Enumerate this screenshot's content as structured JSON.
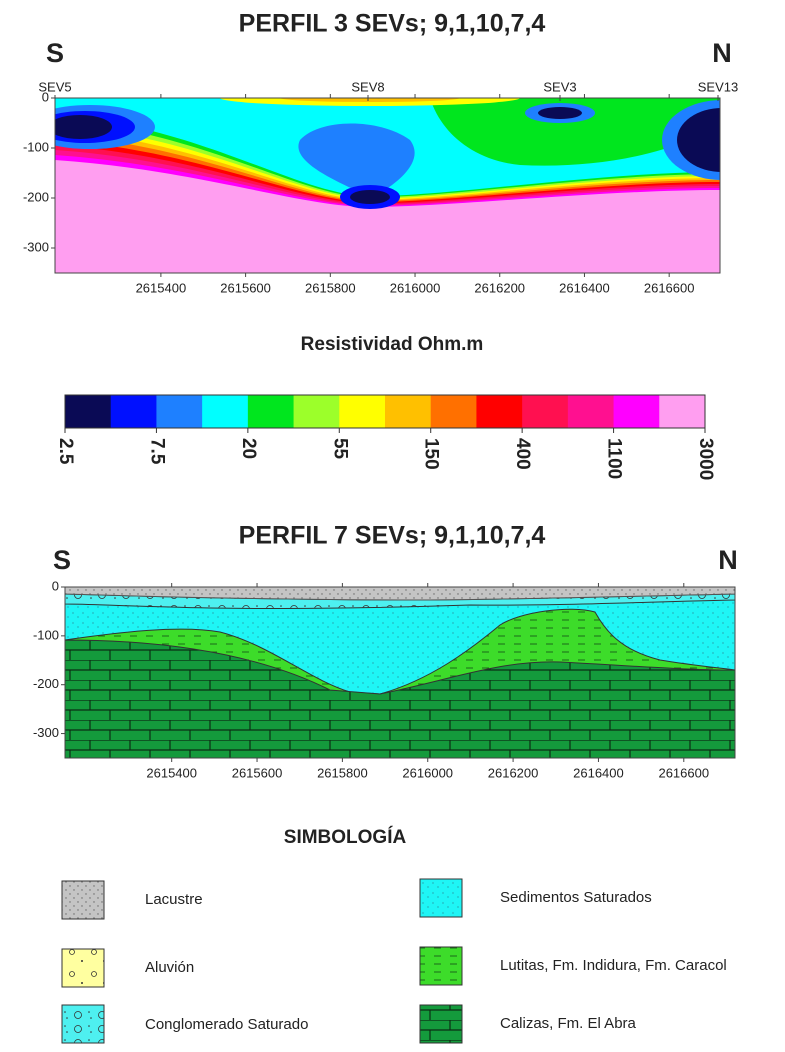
{
  "profile3": {
    "title": "PERFIL 3 SEVs; 9,1,10,7,4",
    "left": "S",
    "right": "N",
    "sevs": [
      "SEV5",
      "SEV8",
      "SEV3",
      "SEV13"
    ],
    "xlim": [
      2615150,
      2616720
    ],
    "xticks": [
      2615400,
      2615600,
      2615800,
      2616000,
      2616200,
      2616400,
      2616600
    ],
    "ylim": [
      -350,
      0
    ],
    "yticks": [
      0,
      -100,
      -200,
      -300
    ]
  },
  "colorscale": {
    "title": "Resistividad Ohm.m",
    "colors": [
      "#0a0a55",
      "#0010ff",
      "#1e80ff",
      "#00ffff",
      "#00e61e",
      "#9cff2a",
      "#ffff00",
      "#ffc000",
      "#ff7000",
      "#ff0000",
      "#ff1050",
      "#ff1090",
      "#ff00ff",
      "#ff9ef0"
    ],
    "labels": [
      2.5,
      7.5,
      20,
      55,
      150,
      400,
      1100,
      3000
    ]
  },
  "profile7": {
    "title": "PERFIL 7 SEVs; 9,1,10,7,4",
    "left": "S",
    "right": "N",
    "xlim": [
      2615150,
      2616720
    ],
    "xticks": [
      2615400,
      2615600,
      2615800,
      2616000,
      2616200,
      2616400,
      2616600
    ],
    "ylim": [
      -350,
      0
    ],
    "yticks": [
      0,
      -100,
      -200,
      -300
    ]
  },
  "legend": {
    "title": "SIMBOLOGÍA",
    "items": [
      "Lacustre",
      "Aluvión",
      "Conglomerado Saturado",
      "Sedimentos Saturados",
      "Lutitas, Fm. Indidura, Fm. Caracol",
      "Calizas, Fm. El Abra"
    ]
  }
}
